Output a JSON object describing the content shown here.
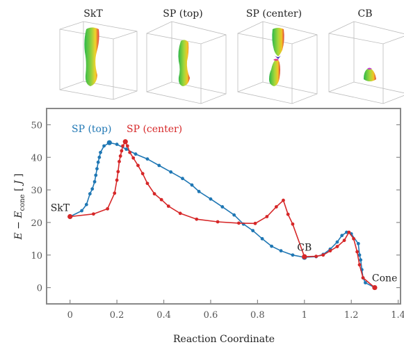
{
  "panels": [
    {
      "title": "SkT",
      "shape": "tube"
    },
    {
      "title": "SP (top)",
      "shape": "tube-narrow"
    },
    {
      "title": "SP (center)",
      "shape": "split"
    },
    {
      "title": "CB",
      "shape": "bobber"
    }
  ],
  "colors": {
    "blue": "#1f77b4",
    "red": "#d62728",
    "frame": "#888888",
    "box": "#bbbbbb"
  },
  "chart_data": {
    "type": "line",
    "xlabel": "Reaction Coordinate",
    "ylabel": "E − E_cone [ J ]",
    "xlim": [
      -0.1,
      1.41
    ],
    "ylim": [
      -5,
      55
    ],
    "xticks": [
      0,
      0.2,
      0.4,
      0.6,
      0.8,
      1,
      1.2,
      1.4
    ],
    "xtick_labels": [
      "0",
      "0.2",
      "0.4",
      "0.6",
      "0.8",
      "1",
      "1.2",
      "1.4"
    ],
    "yticks": [
      0,
      10,
      20,
      30,
      40,
      50
    ],
    "ytick_labels": [
      "0",
      "10",
      "20",
      "30",
      "40",
      "50"
    ],
    "legend": {
      "position": "top-left",
      "entries": [
        "SP (top)",
        "SP (center)"
      ]
    },
    "annotations": [
      {
        "text": "SkT",
        "x": 0.0,
        "y": 21.8
      },
      {
        "text": "CB",
        "x": 1.0,
        "y": 9.2
      },
      {
        "text": "Cone",
        "x": 1.3,
        "y": 0
      }
    ],
    "series": [
      {
        "name": "SP (top)",
        "color": "#1f77b4",
        "x": [
          0.0,
          0.05,
          0.07,
          0.085,
          0.095,
          0.105,
          0.11,
          0.115,
          0.12,
          0.125,
          0.13,
          0.145,
          0.168,
          0.2,
          0.24,
          0.28,
          0.33,
          0.38,
          0.43,
          0.48,
          0.52,
          0.55,
          0.6,
          0.65,
          0.7,
          0.74,
          0.78,
          0.82,
          0.86,
          0.9,
          0.95,
          1.0,
          1.05,
          1.08,
          1.11,
          1.14,
          1.16,
          1.18,
          1.2,
          1.23,
          1.235,
          1.24,
          1.245,
          1.25,
          1.26,
          1.3
        ],
        "y": [
          21.8,
          23.6,
          25.5,
          28.8,
          30.3,
          32.5,
          34.5,
          36.5,
          38.5,
          40.0,
          41.5,
          43.5,
          44.5,
          44.0,
          42.5,
          41.0,
          39.5,
          37.5,
          35.5,
          33.5,
          31.5,
          29.5,
          27.2,
          24.8,
          22.3,
          19.5,
          17.5,
          15.0,
          12.7,
          11.3,
          10.0,
          9.3,
          9.5,
          10.2,
          11.8,
          14.0,
          16.0,
          17.0,
          16.5,
          13.5,
          10.0,
          8.5,
          5.5,
          3.0,
          1.5,
          0.0
        ],
        "markers": [
          0,
          1,
          2,
          3,
          4,
          5,
          6,
          7,
          8,
          9,
          10,
          11,
          12,
          13,
          14,
          15,
          16,
          17,
          18,
          19,
          20,
          21,
          22,
          23,
          24,
          25,
          26,
          27,
          28,
          29,
          30,
          31,
          32,
          33,
          34,
          35,
          36,
          37,
          38,
          39,
          40,
          41,
          42,
          43,
          44,
          45
        ],
        "big_markers": [
          12,
          31
        ]
      },
      {
        "name": "SP (center)",
        "color": "#d62728",
        "x": [
          0.0,
          0.1,
          0.16,
          0.19,
          0.2,
          0.205,
          0.21,
          0.215,
          0.22,
          0.225,
          0.236,
          0.245,
          0.255,
          0.27,
          0.29,
          0.31,
          0.33,
          0.36,
          0.39,
          0.42,
          0.47,
          0.54,
          0.63,
          0.72,
          0.79,
          0.84,
          0.88,
          0.91,
          0.93,
          0.95,
          1.0,
          1.05,
          1.08,
          1.11,
          1.14,
          1.17,
          1.19,
          1.21,
          1.225,
          1.235,
          1.25,
          1.3
        ],
        "y": [
          21.8,
          22.6,
          24.2,
          29.0,
          33.0,
          35.6,
          38.7,
          40.4,
          42.0,
          43.5,
          44.8,
          43.5,
          41.5,
          39.8,
          37.5,
          35.0,
          32.0,
          28.8,
          27.0,
          25.0,
          22.8,
          21.0,
          20.2,
          19.8,
          19.7,
          21.8,
          24.8,
          26.8,
          22.5,
          19.5,
          9.5,
          9.6,
          10.0,
          11.3,
          12.6,
          14.5,
          17.0,
          15.0,
          11.0,
          7.0,
          3.0,
          0.0
        ],
        "big_markers": [
          0,
          10,
          30,
          41
        ]
      }
    ]
  }
}
